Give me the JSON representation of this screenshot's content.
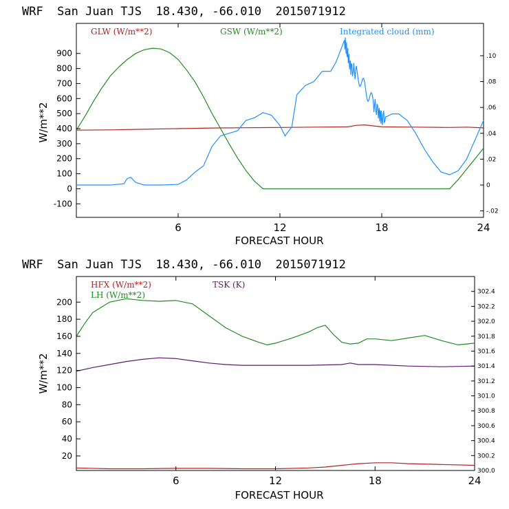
{
  "colors": {
    "glw": "#b22222",
    "gsw": "#228b22",
    "cloud": "#1e90ff",
    "hfx": "#b22222",
    "lh": "#228b22",
    "tsk": "#5b1a6e",
    "axis": "#000000"
  },
  "chart_data": [
    {
      "type": "line",
      "title": "WRF  San Juan TJS  18.430, -66.010  2015071912",
      "xlabel": "FORECAST HOUR",
      "ylabel": "W/m**2",
      "xlim": [
        0,
        24
      ],
      "ylim": [
        -190,
        1100
      ],
      "x_ticks": [
        6,
        12,
        18,
        24
      ],
      "y_ticks": [
        -100,
        0,
        100,
        200,
        300,
        400,
        500,
        600,
        700,
        800,
        900
      ],
      "y2lim": [
        -0.025,
        0.125
      ],
      "y2_ticks": [
        {
          "v": -0.02,
          "label": "-.02"
        },
        {
          "v": 0,
          "label": "0"
        },
        {
          "v": 0.02,
          "label": ".02"
        },
        {
          "v": 0.04,
          "label": ".04"
        },
        {
          "v": 0.06,
          "label": ".06"
        },
        {
          "v": 0.08,
          "label": ".08"
        },
        {
          "v": 0.1,
          "label": ".10"
        }
      ],
      "series": [
        {
          "name": "GLW (W/m**2)",
          "color_key": "glw",
          "axis": "left",
          "x": [
            0,
            2,
            4,
            6,
            8,
            10,
            12,
            14,
            16,
            16.5,
            17,
            18,
            20,
            22,
            23,
            24
          ],
          "values": [
            390,
            392,
            396,
            400,
            404,
            406,
            408,
            410,
            412,
            422,
            425,
            412,
            410,
            408,
            410,
            405
          ]
        },
        {
          "name": "GSW (W/m**2)",
          "color_key": "gsw",
          "axis": "left",
          "x": [
            0,
            0.5,
            1,
            1.5,
            2,
            2.5,
            3,
            3.5,
            4,
            4.5,
            5,
            5.5,
            6,
            6.5,
            7,
            7.5,
            8,
            8.5,
            9,
            9.5,
            10,
            10.5,
            11,
            22,
            22.5,
            23,
            23.5,
            24
          ],
          "values": [
            390,
            480,
            580,
            670,
            750,
            810,
            860,
            900,
            925,
            935,
            930,
            905,
            860,
            790,
            710,
            610,
            500,
            400,
            300,
            205,
            120,
            50,
            0,
            0,
            60,
            130,
            200,
            270
          ]
        },
        {
          "name": "Integrated cloud (mm)",
          "color_key": "cloud",
          "axis": "right",
          "x": [
            0,
            1,
            2,
            2.8,
            3,
            3.2,
            3.5,
            4,
            5,
            6,
            6.5,
            7,
            7.5,
            8,
            8.5,
            9,
            9.5,
            10,
            10.5,
            11,
            11.5,
            12,
            12.3,
            12.7,
            13,
            13.5,
            14,
            14.5,
            15,
            15.3,
            15.6,
            15.8,
            16,
            16.2,
            16.5,
            17,
            17.5,
            17.8,
            18,
            18.3,
            18.6,
            19,
            19.5,
            20,
            20.5,
            21,
            21.5,
            22,
            22.5,
            23,
            23.5,
            24
          ],
          "values": [
            0,
            0,
            0,
            0.001,
            0.005,
            0.006,
            0.002,
            0,
            0,
            0.0005,
            0.004,
            0.01,
            0.015,
            0.03,
            0.038,
            0.04,
            0.042,
            0.05,
            0.052,
            0.056,
            0.054,
            0.046,
            0.038,
            0.045,
            0.07,
            0.077,
            0.08,
            0.088,
            0.088,
            0.095,
            0.105,
            0.112,
            0.1,
            0.09,
            0.087,
            0.075,
            0.063,
            0.057,
            0.052,
            0.053,
            0.055,
            0.055,
            0.05,
            0.04,
            0.028,
            0.018,
            0.01,
            0.008,
            0.011,
            0.02,
            0.035,
            0.05
          ]
        }
      ]
    },
    {
      "type": "line",
      "title": "WRF  San Juan TJS  18.430, -66.010  2015071912",
      "xlabel": "FORECAST HOUR",
      "ylabel": "W/m**2",
      "xlim": [
        0,
        24
      ],
      "ylim": [
        3,
        230
      ],
      "x_ticks": [
        6,
        12,
        18,
        24
      ],
      "y_ticks": [
        20,
        40,
        60,
        80,
        100,
        120,
        140,
        160,
        180,
        200
      ],
      "y2lim": [
        300.0,
        302.6
      ],
      "y2_ticks": [
        {
          "v": 300.0,
          "label": "300.0"
        },
        {
          "v": 300.2,
          "label": "300.2"
        },
        {
          "v": 300.4,
          "label": "300.4"
        },
        {
          "v": 300.6,
          "label": "300.6"
        },
        {
          "v": 300.8,
          "label": "300.8"
        },
        {
          "v": 301.0,
          "label": "301.0"
        },
        {
          "v": 301.2,
          "label": "301.2"
        },
        {
          "v": 301.4,
          "label": "301.4"
        },
        {
          "v": 301.6,
          "label": "301.6"
        },
        {
          "v": 301.8,
          "label": "301.8"
        },
        {
          "v": 302.0,
          "label": "302.0"
        },
        {
          "v": 302.2,
          "label": "302.2"
        },
        {
          "v": 302.4,
          "label": "302.4"
        }
      ],
      "series": [
        {
          "name": "HFX (W/m**2)",
          "color_key": "hfx",
          "axis": "left",
          "x": [
            0,
            2,
            4,
            6,
            8,
            10,
            12,
            14,
            15,
            16,
            17,
            18,
            19,
            20,
            22,
            24
          ],
          "values": [
            6,
            5,
            5,
            5.5,
            5.5,
            5,
            5,
            6,
            7,
            9,
            11,
            12,
            12,
            11,
            10,
            9
          ]
        },
        {
          "name": "LH (W/m**2)",
          "color_key": "lh",
          "axis": "left",
          "x": [
            0,
            0.5,
            1,
            2,
            3,
            4,
            5,
            6,
            7,
            8,
            9,
            10,
            11,
            11.5,
            12,
            13,
            14,
            14.5,
            15,
            15.5,
            16,
            16.5,
            17,
            17.5,
            18,
            19,
            20,
            21,
            22,
            23,
            24
          ],
          "values": [
            160,
            175,
            188,
            200,
            204,
            202,
            201,
            202,
            198,
            184,
            170,
            160,
            153,
            150,
            152,
            158,
            165,
            170,
            173,
            162,
            153,
            151,
            152,
            157,
            157,
            155,
            158,
            161,
            155,
            150,
            152
          ]
        },
        {
          "name": "TSK (K)",
          "color_key": "tsk",
          "axis": "right",
          "x": [
            0,
            1,
            2,
            3,
            4,
            5,
            6,
            7,
            8,
            9,
            10,
            12,
            14,
            16,
            16.5,
            17,
            18,
            20,
            22,
            24
          ],
          "values": [
            301.33,
            301.38,
            301.42,
            301.46,
            301.49,
            301.51,
            301.5,
            301.47,
            301.44,
            301.42,
            301.41,
            301.41,
            301.41,
            301.42,
            301.44,
            301.42,
            301.42,
            301.4,
            301.39,
            301.4
          ]
        }
      ]
    }
  ]
}
